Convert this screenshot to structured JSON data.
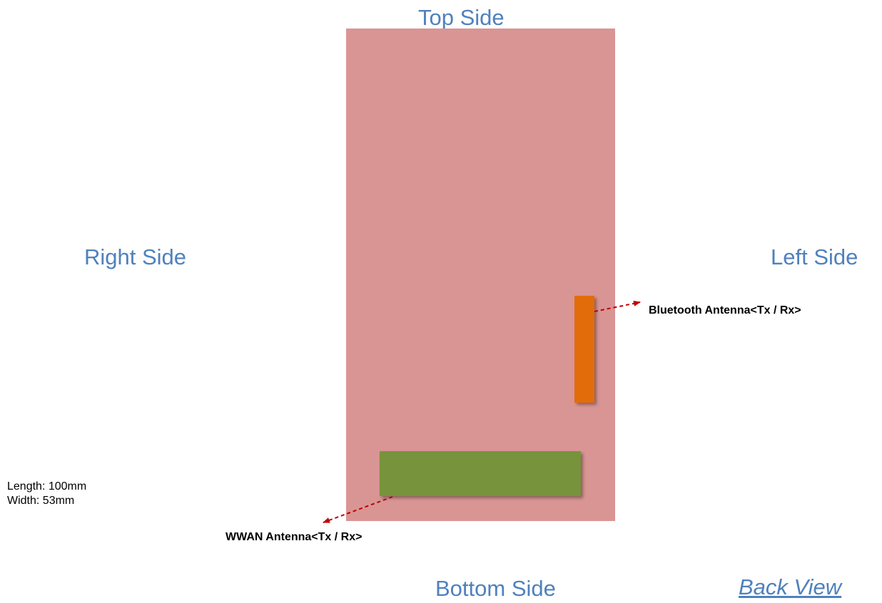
{
  "labels": {
    "top": "Top Side",
    "right": "Right Side",
    "left": "Left Side",
    "bottom": "Bottom Side",
    "view": "Back View"
  },
  "antennas": {
    "bluetooth": "Bluetooth Antenna<Tx / Rx>",
    "wwan": "WWAN Antenna<Tx / Rx>"
  },
  "dimensions": {
    "length": "Length: 100mm",
    "width": "Width: 53mm"
  },
  "colors": {
    "body": "#d99594",
    "bluetooth_antenna": "#e36c0a",
    "wwan_antenna": "#77933c",
    "arrow": "#c00000",
    "side_label": "#4f81bd"
  }
}
